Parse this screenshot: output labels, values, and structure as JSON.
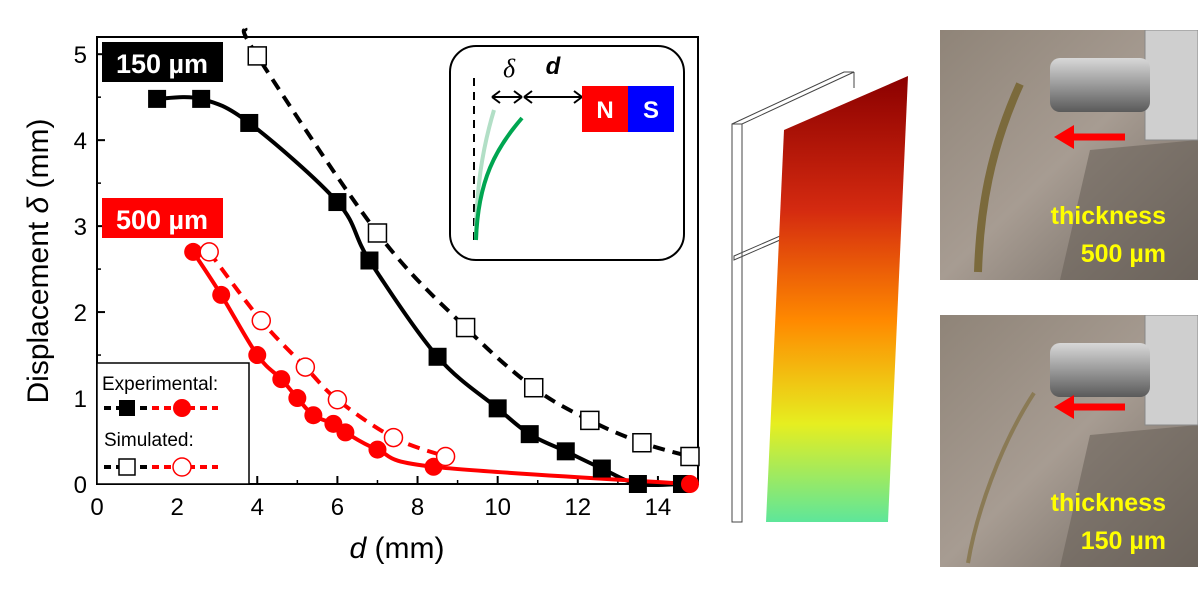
{
  "chart_data": {
    "type": "line",
    "xlabel_var": "d",
    "xlabel_unit": " (mm)",
    "ylabel_text": "Displacement ",
    "ylabel_var": "δ",
    "ylabel_unit": " (mm)",
    "xlim": [
      0,
      15
    ],
    "ylim": [
      0,
      5.2
    ],
    "xticks": [
      "0",
      "2",
      "4",
      "6",
      "8",
      "10",
      "12",
      "14"
    ],
    "yticks": [
      "0",
      "1",
      "2",
      "3",
      "4",
      "5"
    ],
    "series": [
      {
        "name": "150 µm experimental",
        "color": "#000000",
        "marker": "filled-square",
        "points": [
          [
            1.5,
            4.48
          ],
          [
            2.6,
            4.48
          ],
          [
            3.8,
            4.2
          ],
          [
            6.0,
            3.28
          ],
          [
            6.8,
            2.6
          ],
          [
            8.5,
            1.48
          ],
          [
            10.0,
            0.88
          ],
          [
            10.8,
            0.58
          ],
          [
            11.7,
            0.38
          ],
          [
            12.6,
            0.18
          ],
          [
            13.5,
            0.0
          ],
          [
            14.6,
            0.0
          ]
        ]
      },
      {
        "name": "150 µm simulated",
        "color": "#000000",
        "marker": "open-square",
        "points": [
          [
            4.0,
            4.98
          ],
          [
            7.0,
            2.92
          ],
          [
            9.2,
            1.82
          ],
          [
            10.9,
            1.12
          ],
          [
            12.3,
            0.74
          ],
          [
            13.6,
            0.48
          ],
          [
            14.8,
            0.32
          ]
        ]
      },
      {
        "name": "500 µm experimental",
        "color": "#ff0000",
        "marker": "filled-circle",
        "points": [
          [
            2.4,
            2.7
          ],
          [
            3.1,
            2.2
          ],
          [
            4.0,
            1.5
          ],
          [
            4.6,
            1.22
          ],
          [
            5.0,
            1.0
          ],
          [
            5.4,
            0.8
          ],
          [
            5.9,
            0.7
          ],
          [
            6.2,
            0.6
          ],
          [
            7.0,
            0.4
          ],
          [
            8.4,
            0.2
          ],
          [
            14.8,
            0.0
          ]
        ]
      },
      {
        "name": "500 µm simulated",
        "color": "#ff0000",
        "marker": "open-circle",
        "points": [
          [
            2.8,
            2.7
          ],
          [
            4.1,
            1.9
          ],
          [
            5.2,
            1.36
          ],
          [
            6.0,
            0.98
          ],
          [
            7.4,
            0.54
          ],
          [
            8.7,
            0.32
          ]
        ]
      }
    ],
    "labels": {
      "thick150": "150 µm",
      "thick500": "500 µm"
    },
    "legend": {
      "experimental": "Experimental:",
      "simulated": "Simulated:"
    },
    "inset": {
      "delta": "δ",
      "d": "d",
      "north": "N",
      "south": "S"
    }
  },
  "photos": {
    "top_label_line1": "thickness",
    "top_label_line2": "500 µm",
    "bottom_label_line1": "thickness",
    "bottom_label_line2": "150 µm"
  },
  "colors": {
    "accent_red": "#ff0000",
    "magnet_north": "#ff0000",
    "magnet_south": "#0000ff",
    "beam_green": "#00a651",
    "label_yellow": "#ffff00"
  }
}
